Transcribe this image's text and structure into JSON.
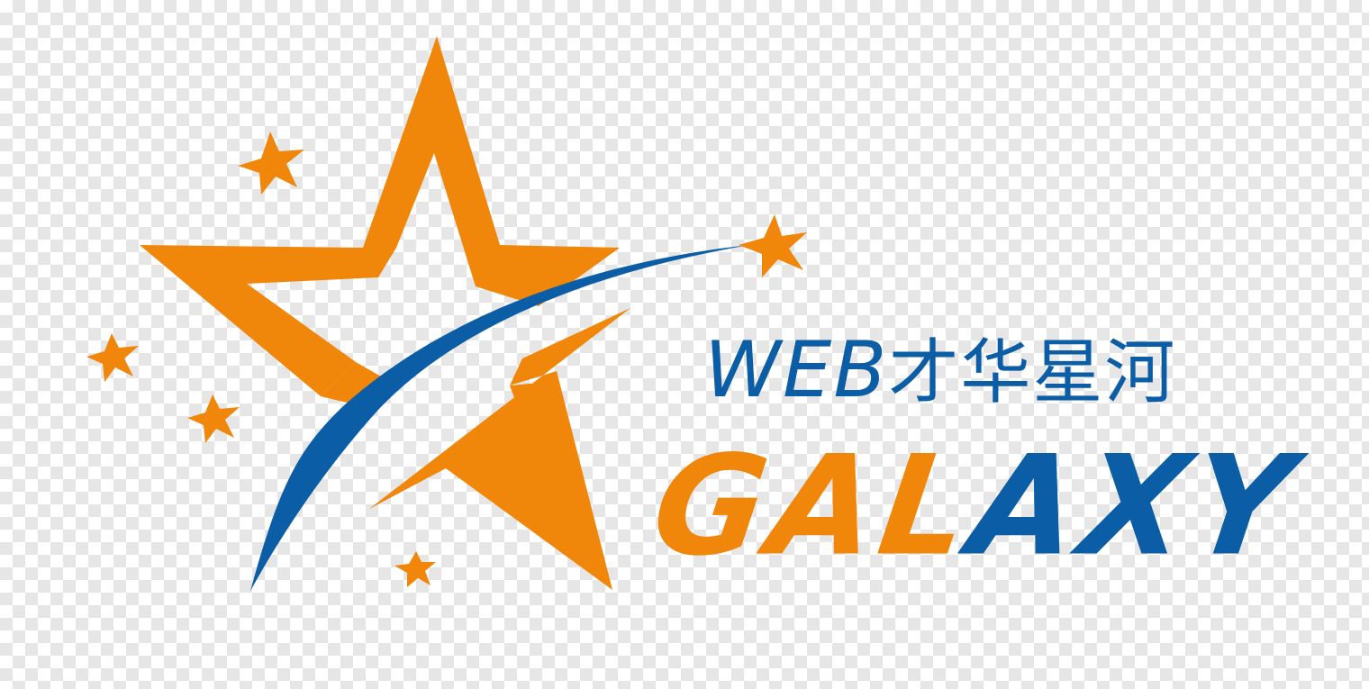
{
  "logo": {
    "tagline_latin": "WEB",
    "tagline_cjk": "才华星河",
    "wordmark_orange": "GAL",
    "wordmark_blue": "AXY",
    "colors": {
      "orange": "#f0860a",
      "blue": "#0b5ea6",
      "checker_light": "#ffffff",
      "checker_dark": "#e6e6e6"
    },
    "icons": [
      "big-star-outline-icon",
      "shooting-star-swoosh-icon",
      "small-star-icon"
    ]
  }
}
